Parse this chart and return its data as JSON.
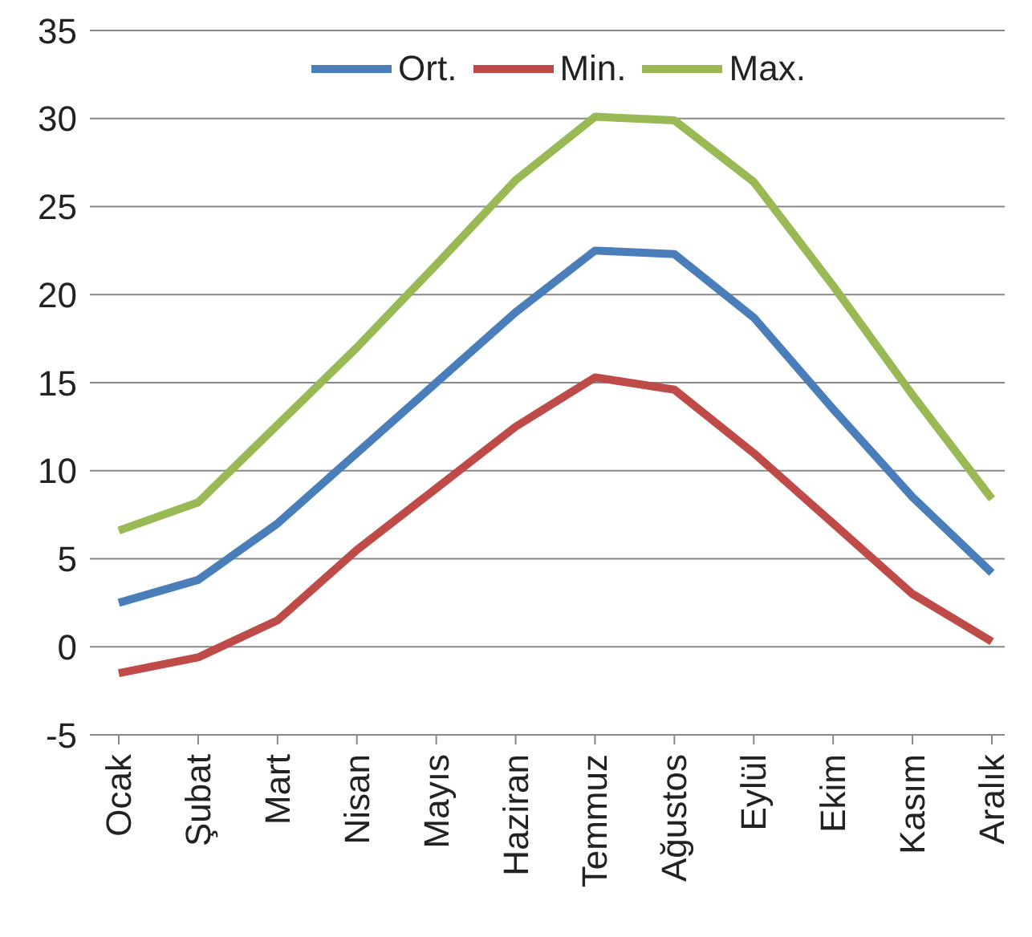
{
  "chart_data": {
    "type": "line",
    "categories": [
      "Ocak",
      "Şubat",
      "Mart",
      "Nisan",
      "Mayıs",
      "Haziran",
      "Temmuz",
      "Ağustos",
      "Eylül",
      "Ekim",
      "Kasım",
      "Aralık"
    ],
    "series": [
      {
        "name": "Ort.",
        "color": "#4a7ebb",
        "values": [
          2.5,
          3.8,
          7,
          11,
          15,
          19,
          22.5,
          22.3,
          18.7,
          13.5,
          8.5,
          4.2
        ]
      },
      {
        "name": "Min.",
        "color": "#be4b48",
        "values": [
          -1.5,
          -0.6,
          1.5,
          5.5,
          9,
          12.5,
          15.3,
          14.6,
          11,
          7,
          3,
          0.3
        ]
      },
      {
        "name": "Max.",
        "color": "#98b954",
        "values": [
          6.6,
          8.2,
          12.6,
          17,
          21.7,
          26.5,
          30.1,
          29.9,
          26.4,
          20.5,
          14.3,
          8.4
        ]
      }
    ],
    "ylim": [
      -5,
      35
    ],
    "yticks": [
      -5,
      0,
      5,
      10,
      15,
      20,
      25,
      30,
      35
    ],
    "grid": "y",
    "legend": "top",
    "marker": "none",
    "line_style": "solid"
  }
}
